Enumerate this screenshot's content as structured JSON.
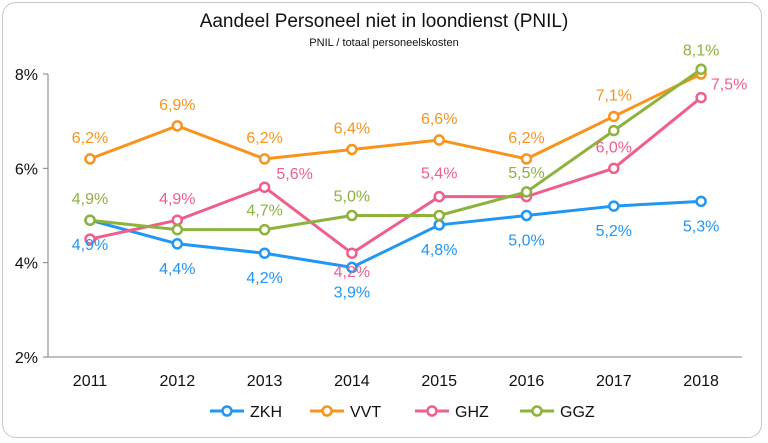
{
  "chart_data": {
    "type": "line",
    "title": "Aandeel Personeel niet in loondienst (PNIL)",
    "subtitle": "PNIL / totaal personeelskosten",
    "categories": [
      "2011",
      "2012",
      "2013",
      "2014",
      "2015",
      "2016",
      "2017",
      "2018"
    ],
    "ylim": [
      2,
      8
    ],
    "yticks": [
      2,
      4,
      6,
      8
    ],
    "ytick_labels": [
      "2%",
      "4%",
      "6%",
      "8%"
    ],
    "grid": false,
    "legend_position": "bottom",
    "series": [
      {
        "name": "ZKH",
        "color": "#2196F3",
        "values": [
          4.9,
          4.4,
          4.2,
          3.9,
          4.8,
          5.0,
          5.2,
          5.3
        ],
        "labels": [
          "4,9%",
          "4,4%",
          "4,2%",
          "3,9%",
          "4,8%",
          "5,0%",
          "5,2%",
          "5,3%"
        ]
      },
      {
        "name": "VVT",
        "color": "#F7941D",
        "values": [
          6.2,
          6.9,
          6.2,
          6.4,
          6.6,
          6.2,
          7.1,
          8.0
        ],
        "labels": [
          "6,2%",
          "6,9%",
          "6,2%",
          "6,4%",
          "6,6%",
          "6,2%",
          "7,1%",
          ""
        ]
      },
      {
        "name": "GHZ",
        "color": "#EE5F8B",
        "values": [
          4.5,
          4.9,
          5.6,
          4.2,
          5.4,
          5.4,
          6.0,
          7.5
        ],
        "labels": [
          "",
          "4,9%",
          "5,6%",
          "4,2%",
          "5,4%",
          "",
          "6,0%",
          "7,5%"
        ]
      },
      {
        "name": "GGZ",
        "color": "#8DB33C",
        "values": [
          4.9,
          4.7,
          4.7,
          5.0,
          5.0,
          5.5,
          6.8,
          8.1
        ],
        "labels": [
          "4,9%",
          "",
          "4,7%",
          "5,0%",
          "",
          "5,5%",
          "",
          "8,1%"
        ]
      }
    ]
  }
}
